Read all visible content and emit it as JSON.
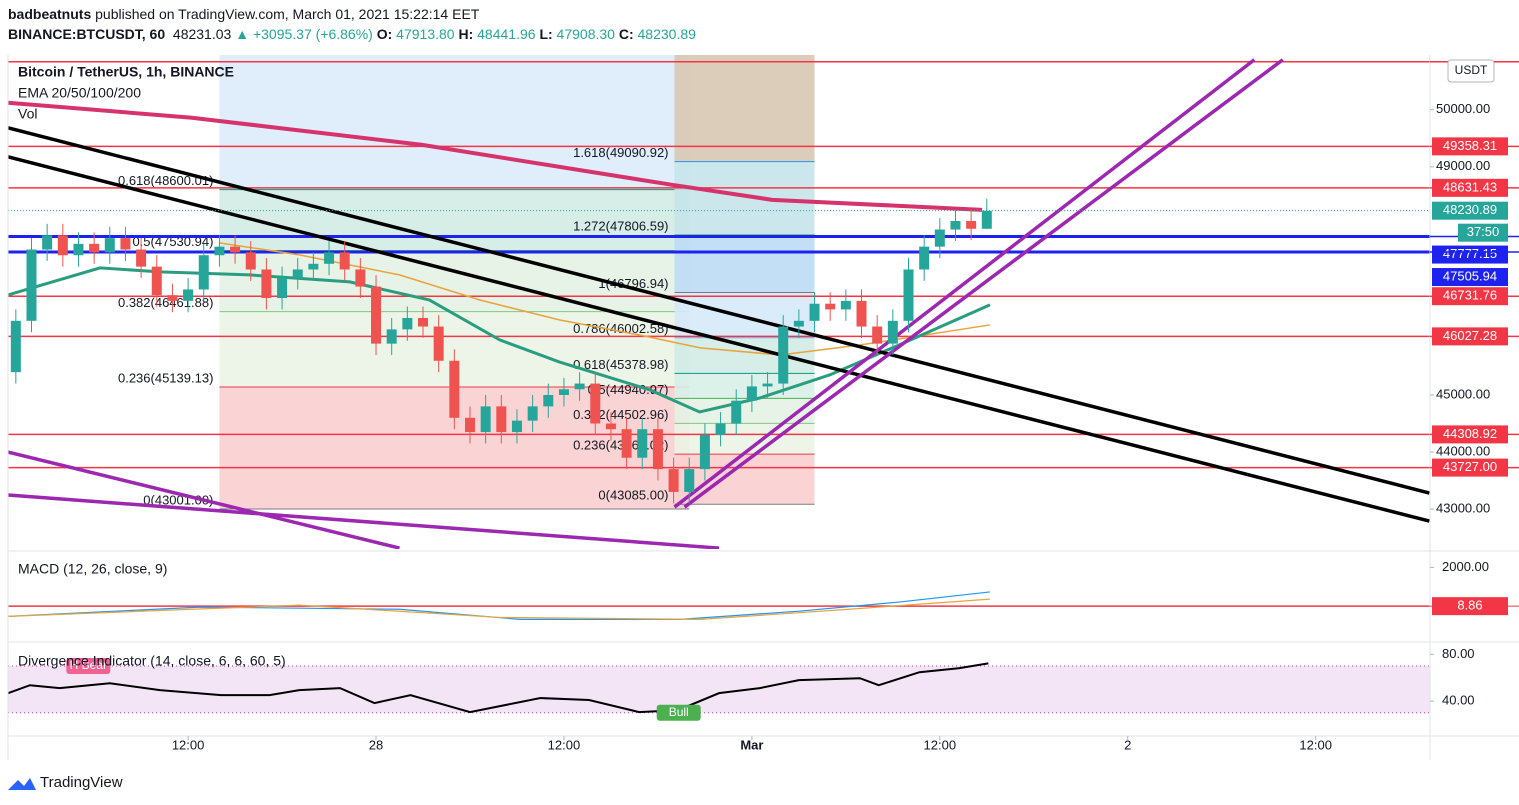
{
  "header": {
    "user": "badbeatnuts",
    "published": "published on TradingView.com, March 01, 2021 15:22:14 EET",
    "symbol": "BINANCE:BTCUSDT, 60",
    "last": "48231.03",
    "arrow": "▲",
    "change": "+3095.37 (+6.86%)",
    "ohlc": [
      {
        "key": "O:",
        "value": "47913.80"
      },
      {
        "key": "H:",
        "value": "48441.96"
      },
      {
        "key": "L:",
        "value": "47908.30"
      },
      {
        "key": "C:",
        "value": "48230.89"
      }
    ]
  },
  "footer": "TradingView",
  "chart_data": {
    "type": "candlestick",
    "title": "Bitcoin / TetherUS, 1h, BINANCE",
    "indicators": [
      "EMA 20/50/100/200",
      "Vol"
    ],
    "currency": "USDT",
    "up_color": "#26a69a",
    "down_color": "#ef5350",
    "x": [
      1,
      2,
      3,
      4,
      5,
      6,
      7,
      8,
      9,
      10,
      11,
      12,
      13,
      14,
      15,
      16,
      17,
      18,
      19,
      20,
      21,
      22,
      23,
      24,
      25,
      26,
      27,
      28,
      29,
      30,
      31,
      32,
      33,
      34,
      35,
      36,
      37,
      38,
      39,
      40,
      41,
      42,
      43,
      44,
      45,
      46,
      47,
      48,
      49,
      50,
      51,
      52,
      53,
      54,
      55,
      56,
      57,
      58,
      59,
      60,
      61,
      62,
      63
    ],
    "open": [
      45400,
      46300,
      47550,
      47800,
      47450,
      47650,
      47500,
      47750,
      47550,
      47250,
      46750,
      46650,
      46850,
      47450,
      47600,
      47500,
      47200,
      46700,
      47050,
      47200,
      47300,
      47500,
      47200,
      46900,
      45900,
      46150,
      46350,
      46200,
      45600,
      44600,
      44350,
      44800,
      44350,
      44550,
      44800,
      45000,
      45100,
      45200,
      44500,
      44400,
      43900,
      44400,
      43700,
      43300,
      43700,
      44300,
      44500,
      44900,
      45150,
      45200,
      46200,
      46300,
      46600,
      46500,
      46650,
      46200,
      45900,
      46300,
      47200,
      47600,
      47900,
      48050,
      47913.8
    ],
    "high": [
      46500,
      47750,
      48000,
      48000,
      47850,
      47850,
      47950,
      47950,
      47750,
      47450,
      46950,
      47050,
      47650,
      47800,
      47800,
      47700,
      47400,
      47250,
      47400,
      47500,
      47700,
      47700,
      47400,
      47100,
      46350,
      46550,
      46550,
      46400,
      45800,
      44800,
      45000,
      45000,
      44750,
      45000,
      45200,
      45300,
      45400,
      45400,
      44700,
      44600,
      44600,
      44600,
      43900,
      43900,
      44500,
      44700,
      45100,
      45350,
      45400,
      46400,
      46500,
      46800,
      46800,
      46850,
      46850,
      46400,
      46500,
      47400,
      47800,
      48100,
      48250,
      48250,
      48441.96
    ],
    "low": [
      45200,
      46100,
      47350,
      47250,
      47250,
      47300,
      47300,
      47350,
      47050,
      46550,
      46450,
      46450,
      46650,
      47250,
      47300,
      47000,
      46500,
      46500,
      46850,
      47000,
      47100,
      47000,
      46700,
      45700,
      45700,
      45950,
      46000,
      45400,
      44400,
      44150,
      44150,
      44150,
      44150,
      44350,
      44600,
      44800,
      44900,
      44300,
      44200,
      43700,
      43700,
      43500,
      43100,
      43100,
      43500,
      44100,
      44300,
      44700,
      44950,
      45000,
      46000,
      46100,
      46300,
      46300,
      46000,
      45700,
      45700,
      46100,
      47000,
      47400,
      47700,
      47713.8,
      47908.3
    ],
    "close": [
      46300,
      47550,
      47800,
      47450,
      47650,
      47500,
      47750,
      47550,
      47250,
      46750,
      46650,
      46850,
      47450,
      47600,
      47500,
      47200,
      46700,
      47050,
      47200,
      47300,
      47500,
      47200,
      46900,
      45900,
      46150,
      46350,
      46200,
      45600,
      44600,
      44350,
      44800,
      44350,
      44550,
      44800,
      45000,
      45100,
      45200,
      44500,
      44400,
      43900,
      44400,
      43700,
      43300,
      43700,
      44300,
      44500,
      44900,
      45150,
      45200,
      46200,
      46300,
      46600,
      46500,
      46650,
      46200,
      45900,
      46300,
      47200,
      47600,
      47900,
      48050,
      47913.8,
      48230.89
    ],
    "xlim": [
      0.5,
      91.3
    ],
    "xticks": [
      {
        "value": 12,
        "label": "12:00"
      },
      {
        "value": 24,
        "label": "28"
      },
      {
        "value": 36,
        "label": "12:00"
      },
      {
        "value": 48,
        "label": "Mar"
      },
      {
        "value": 60,
        "label": "12:00"
      },
      {
        "value": 72,
        "label": "2"
      },
      {
        "value": 84,
        "label": "12:00"
      }
    ],
    "ylim": [
      42300,
      50960
    ],
    "yticks": [
      {
        "value": 50000,
        "label": "50000.00"
      },
      {
        "value": 49000,
        "label": "49000.00"
      },
      {
        "value": 45000,
        "label": "45000.00"
      },
      {
        "value": 44000,
        "label": "44000.00"
      },
      {
        "value": 43000,
        "label": "43000.00"
      }
    ],
    "ema": [
      {
        "color": "#d6336c",
        "width": 4,
        "x": [
          0.5,
          12.24,
          26.9,
          42.9,
          49.3,
          62.7
        ],
        "values": [
          50123,
          49860,
          49386,
          48684,
          48421,
          48246
        ]
      },
      {
        "color": "#e8a33d",
        "width": 1.5,
        "x": [
          14,
          19.1,
          25.5,
          30.6,
          35.7,
          40.8,
          44.7,
          49.8,
          54.9,
          63.2
        ],
        "values": [
          47667,
          47456,
          47105,
          46667,
          46316,
          46053,
          45825,
          45702,
          45877,
          46228
        ]
      },
      {
        "color": "#2a9d80",
        "width": 3,
        "x": [
          0.5,
          6.37,
          10.2,
          15.94,
          22.32,
          27.4,
          31.9,
          35.7,
          41.5,
          44.66,
          48.5,
          52.96,
          57.4,
          63.2
        ],
        "values": [
          46754,
          47228,
          47158,
          47105,
          46982,
          46667,
          45965,
          45579,
          45088,
          44702,
          44947,
          45351,
          45877,
          46579
        ]
      }
    ],
    "levels": [
      {
        "value": 50842,
        "color": "#f23645"
      },
      {
        "value": 49358.31,
        "label": "49358.31",
        "color": "#f23645"
      },
      {
        "value": 48631.43,
        "label": "48631.43",
        "color": "#f23645"
      },
      {
        "value": 47777.15,
        "label": "47777.15",
        "color": "#1e22ee"
      },
      {
        "value": 47505.94,
        "label": "47505.94",
        "color": "#1e22ee"
      },
      {
        "value": 46731.76,
        "label": "46731.76",
        "color": "#f23645"
      },
      {
        "value": 46027.28,
        "label": "46027.28",
        "color": "#f23645"
      },
      {
        "value": 44308.92,
        "label": "44308.92",
        "color": "#f23645"
      },
      {
        "value": 43727,
        "label": "43727.00",
        "color": "#f23645"
      }
    ],
    "last_price": {
      "value": 48230.89,
      "label": "48230.89"
    },
    "countdown": "37:50",
    "trendlines": [
      {
        "color": "#000000",
        "x": [
          0.5,
          91.26
        ],
        "values": [
          49684,
          43281
        ]
      },
      {
        "color": "#000000",
        "x": [
          0.5,
          91.26
        ],
        "values": [
          49175,
          42789
        ]
      },
      {
        "color": "#9c27b0",
        "x": [
          43.06,
          80.08
        ],
        "values": [
          43035,
          50877
        ]
      },
      {
        "color": "#9c27b0",
        "x": [
          43.7,
          81.9
        ],
        "values": [
          43035,
          50877
        ]
      },
      {
        "color": "#9c27b0",
        "x": [
          0.5,
          25.5
        ],
        "values": [
          44000,
          42316
        ]
      },
      {
        "color": "#9c27b0",
        "x": [
          0.5,
          45.9
        ],
        "values": [
          43246,
          42316
        ]
      }
    ],
    "fibs": [
      {
        "x": [
          14,
          44
        ],
        "levels": [
          {
            "value": 43001.0,
            "label": "0(43001.00)",
            "color": "#787b86",
            "fill": "#f9cfcf"
          },
          {
            "value": 45139.13,
            "label": "0.236(45139.13)",
            "color": "#f23645",
            "fill": "#eaf4e4"
          },
          {
            "value": 46461.88,
            "label": "0.382(46461.88)",
            "color": "#81c784",
            "fill": "#e3f2e3"
          },
          {
            "value": 47530.94,
            "label": "0.5(47530.94)",
            "color": "#4caf50",
            "fill": "#d2ebe6"
          },
          {
            "value": 48600.01,
            "label": "0.618(48600.01)",
            "color": "#089981",
            "fill": "#dcecf9"
          }
        ]
      },
      {
        "x": [
          43.06,
          52
        ],
        "levels": [
          {
            "value": 43085.0,
            "label": "0(43085.00)",
            "color": "#787b86",
            "fill": "#f9cfcf"
          },
          {
            "value": 43963.02,
            "label": "0.236(43963.02)",
            "color": "#f23645",
            "fill": "#eaf4e4"
          },
          {
            "value": 44502.96,
            "label": "0.382(44502.96)",
            "color": "#81c784",
            "fill": "#e3f2e3"
          },
          {
            "value": 44940.97,
            "label": "0.5(44940.97)",
            "color": "#4caf50",
            "fill": "#d7efe8"
          },
          {
            "value": 45378.98,
            "label": "0.618(45378.98)",
            "color": "#089981",
            "fill": "#d2ebe6"
          },
          {
            "value": 46002.58,
            "label": "0.786(46002.58)",
            "color": "#64b5f6",
            "fill": "#d6e9f8"
          },
          {
            "value": 46796.94,
            "label": "1(46796.94)",
            "color": "#787b86",
            "fill": "#bcdcf5"
          },
          {
            "value": 47806.59,
            "label": "1.272(47806.59)",
            "color": "#4caf50",
            "fill": "#c6e4ea"
          },
          {
            "value": 49090.92,
            "label": "1.618(49090.92)",
            "color": "#2196f3",
            "fill": "#d8c8b4"
          }
        ]
      }
    ],
    "panes": [
      {
        "title": "MACD (12, 26, close, 9)",
        "ylim": [
          -1730,
          2740
        ],
        "yticks": [
          {
            "value": 2000,
            "label": "2000.00"
          }
        ],
        "level": {
          "value": 8.86,
          "label": "8.86",
          "color": "#f23645"
        },
        "series": [
          {
            "color": "#2196f3",
            "x": [
              0.5,
              12.75,
              25.5,
              33.2,
              43.4,
              51.0,
              57.4,
              63.2
            ],
            "values": [
              -515,
              -40,
              -150,
              -670,
              -670,
              -250,
              220,
              740
            ]
          },
          {
            "color": "#e8a33d",
            "x": [
              0.5,
              19.1,
              31.9,
              44.7,
              54.2,
              63.2
            ],
            "values": [
              -515,
              60,
              -570,
              -670,
              -150,
              370
            ]
          }
        ]
      },
      {
        "title": "Divergence Indicator (14, close, 6, 6, 60, 5)",
        "ylim": [
          11,
          88
        ],
        "yticks": [
          {
            "value": 80,
            "label": "80.00"
          },
          {
            "value": 40,
            "label": "40.00"
          }
        ],
        "band": [
          30,
          70
        ],
        "series": [
          {
            "color": "#000000",
            "x": [
              0.5,
              1.9,
              3.8,
              7.0,
              10.2,
              14.1,
              17.2,
              19.1,
              21.7,
              23.9,
              26.2,
              30.0,
              34.5,
              37.6,
              40.8,
              43.3,
              45.9,
              48.5,
              51.0,
              54.9,
              56.1,
              58.7,
              61.2,
              63.1
            ],
            "values": [
              46.8,
              53.6,
              51.1,
              55.3,
              49.4,
              45.1,
              45.1,
              49.4,
              51.1,
              38.3,
              45.1,
              30.6,
              42.6,
              40.9,
              30.6,
              32.3,
              46.8,
              51.1,
              57.9,
              59.6,
              53.6,
              64.7,
              68.1,
              72.3
            ]
          }
        ],
        "tags": [
          {
            "label": "H Bear",
            "x": 5.5,
            "value": 70,
            "color": "#f06292"
          },
          {
            "label": "Bull",
            "x": 43.2,
            "value": 30,
            "color": "#4caf50"
          }
        ]
      }
    ]
  }
}
